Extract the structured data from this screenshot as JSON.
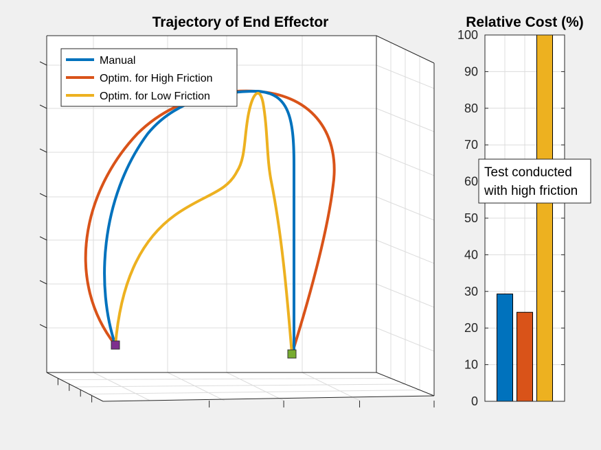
{
  "colors": {
    "background": "#f0f0f0",
    "axes_bg": "#ffffff",
    "grid": "#dcdcdc",
    "axis": "#262626",
    "start_marker": "#7e2f8e",
    "end_marker": "#77ac30"
  },
  "chart_data": [
    {
      "type": "line",
      "title": "Trajectory of End Effector",
      "view": "3d",
      "grid": true,
      "legend_position": "top-left",
      "tick_labels_shown": false,
      "series": [
        {
          "name": "Manual",
          "color": "#0072bd"
        },
        {
          "name": "Optim. for High Friction",
          "color": "#d95319"
        },
        {
          "name": "Optim. for Low Friction",
          "color": "#edb120"
        }
      ]
    },
    {
      "type": "bar",
      "title": "Relative Cost (%)",
      "ylim": [
        0,
        100
      ],
      "yticks": [
        "0",
        "10",
        "20",
        "30",
        "40",
        "50",
        "60",
        "70",
        "80",
        "90",
        "100"
      ],
      "grid": true,
      "values": [
        29.3,
        24.3,
        100
      ],
      "colors": [
        "#0072bd",
        "#d95319",
        "#edb120"
      ],
      "annotation": [
        "Test conducted",
        "with high friction"
      ]
    }
  ]
}
